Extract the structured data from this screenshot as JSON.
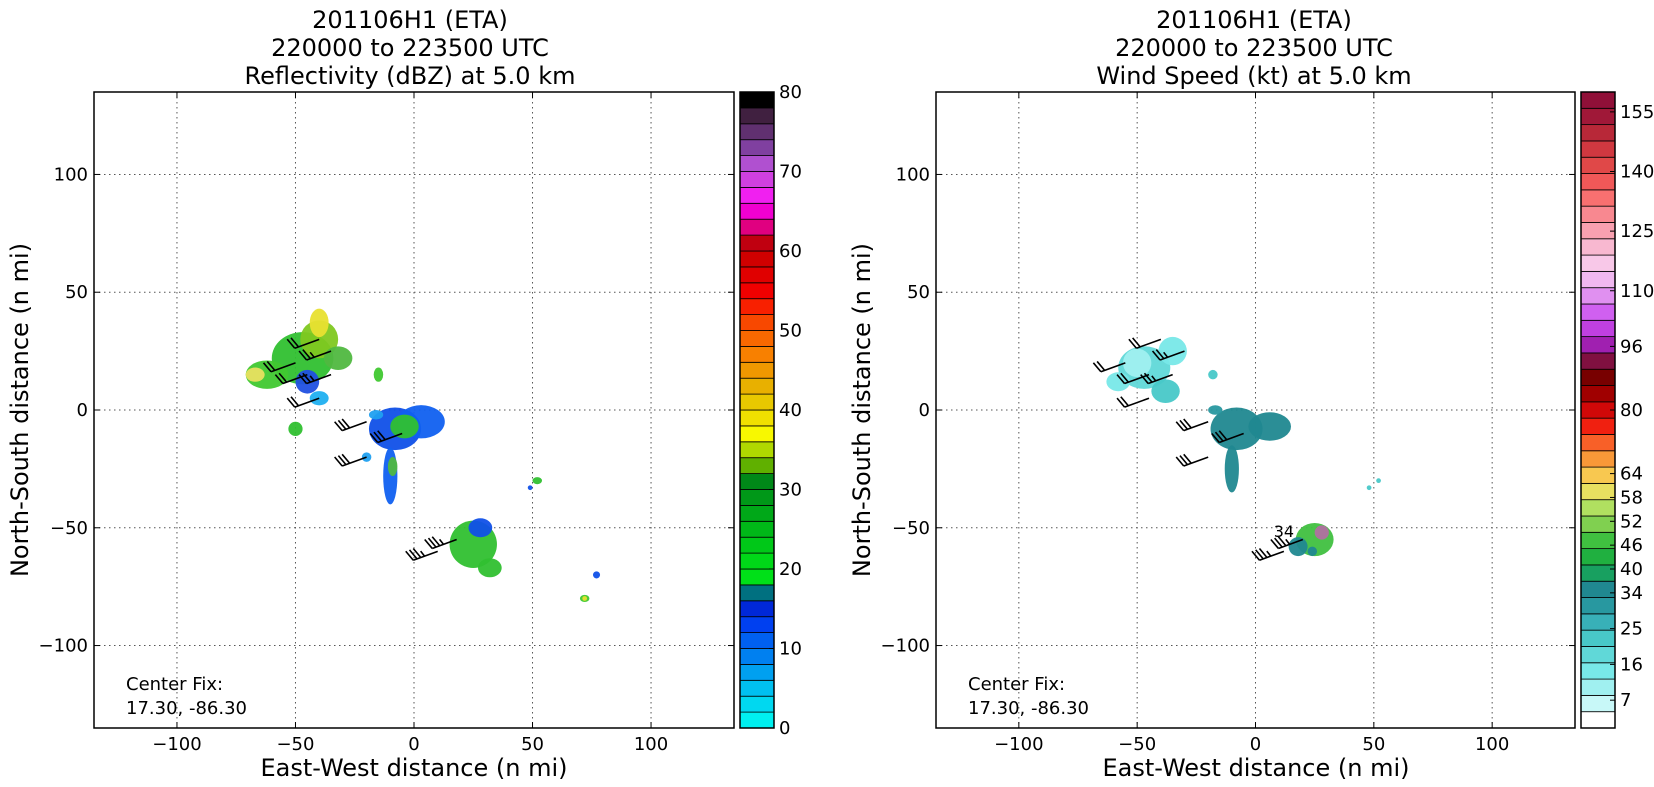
{
  "chart_data": [
    {
      "type": "heatmap",
      "title_lines": [
        "201106H1 (ETA)",
        "220000 to 223500 UTC",
        "Reflectivity (dBZ) at 5.0 km"
      ],
      "xlabel": "East-West distance (n mi)",
      "ylabel": "North-South distance (n mi)",
      "xlim": [
        -135,
        135
      ],
      "ylim": [
        -135,
        135
      ],
      "xticks": [
        -100,
        -50,
        0,
        50,
        100
      ],
      "yticks": [
        -100,
        -50,
        0,
        50,
        100
      ],
      "xtick_labels": [
        "−100",
        "−50",
        "0",
        "50",
        "100"
      ],
      "ytick_labels": [
        "−100",
        "−50",
        "0",
        "50",
        "100"
      ],
      "grid": true,
      "annotation_lines": [
        "Center Fix:",
        "17.30, -86.30"
      ],
      "colorbar": {
        "min": 0,
        "max": 80,
        "step": 2.5,
        "colors": [
          "#00f0f0",
          "#00d8f0",
          "#00c0f0",
          "#00a0f0",
          "#0080f0",
          "#0060f0",
          "#0040f0",
          "#0028d8",
          "#007080",
          "#00e018",
          "#00d818",
          "#00c818",
          "#00b818",
          "#00a818",
          "#009818",
          "#008818",
          "#60b000",
          "#b0d800",
          "#f8f800",
          "#f0e000",
          "#e8c800",
          "#e8b000",
          "#f09800",
          "#f88000",
          "#f86800",
          "#f84800",
          "#f82000",
          "#f00000",
          "#e00000",
          "#d00000",
          "#c00010",
          "#e00080",
          "#f000d0",
          "#f020f0",
          "#d040e0",
          "#b050d0",
          "#8040a0",
          "#603070",
          "#402040",
          "#000000"
        ],
        "tick_values": [
          0,
          10,
          20,
          30,
          40,
          50,
          60,
          70,
          80
        ],
        "tick_labels": [
          "0",
          "10",
          "20",
          "30",
          "40",
          "50",
          "60",
          "70",
          "80"
        ]
      },
      "echo_cells": [
        {
          "x": -47,
          "y": 22,
          "rx": 13,
          "ry": 11,
          "color": "#30c030"
        },
        {
          "x": -62,
          "y": 15,
          "rx": 9,
          "ry": 6,
          "color": "#40c830"
        },
        {
          "x": -40,
          "y": 30,
          "rx": 8,
          "ry": 8,
          "color": "#80c820"
        },
        {
          "x": -40,
          "y": 37,
          "rx": 4,
          "ry": 6,
          "color": "#e8e030"
        },
        {
          "x": -67,
          "y": 15,
          "rx": 4,
          "ry": 3,
          "color": "#e8e060"
        },
        {
          "x": -45,
          "y": 12,
          "rx": 5,
          "ry": 5,
          "color": "#2050e0"
        },
        {
          "x": -40,
          "y": 5,
          "rx": 4,
          "ry": 3,
          "color": "#20b0f0"
        },
        {
          "x": -32,
          "y": 22,
          "rx": 6,
          "ry": 5,
          "color": "#50b840"
        },
        {
          "x": -50,
          "y": -8,
          "rx": 3,
          "ry": 3,
          "color": "#30c030"
        },
        {
          "x": -15,
          "y": 15,
          "rx": 2,
          "ry": 3,
          "color": "#40c830"
        },
        {
          "x": -8,
          "y": -8,
          "rx": 11,
          "ry": 9,
          "color": "#1050e8"
        },
        {
          "x": 3,
          "y": -5,
          "rx": 10,
          "ry": 7,
          "color": "#1060f0"
        },
        {
          "x": -4,
          "y": -7,
          "rx": 6,
          "ry": 5,
          "color": "#30c030"
        },
        {
          "x": -10,
          "y": -28,
          "rx": 3,
          "ry": 12,
          "color": "#1060f0"
        },
        {
          "x": -9,
          "y": -24,
          "rx": 2,
          "ry": 4,
          "color": "#50b840"
        },
        {
          "x": -16,
          "y": -2,
          "rx": 3,
          "ry": 2,
          "color": "#20a0f0"
        },
        {
          "x": -20,
          "y": -20,
          "rx": 2,
          "ry": 2,
          "color": "#20a0f0"
        },
        {
          "x": 25,
          "y": -57,
          "rx": 10,
          "ry": 10,
          "color": "#30c030"
        },
        {
          "x": 32,
          "y": -67,
          "rx": 5,
          "ry": 4,
          "color": "#30c030"
        },
        {
          "x": 28,
          "y": -50,
          "rx": 5,
          "ry": 4,
          "color": "#1050e8"
        },
        {
          "x": 52,
          "y": -30,
          "rx": 2,
          "ry": 1.5,
          "color": "#30c030"
        },
        {
          "x": 49,
          "y": -33,
          "rx": 1,
          "ry": 1,
          "color": "#1050e8"
        },
        {
          "x": 77,
          "y": -70,
          "rx": 1.5,
          "ry": 1.5,
          "color": "#1050e8"
        },
        {
          "x": 72,
          "y": -80,
          "rx": 2,
          "ry": 1.5,
          "color": "#40c830"
        },
        {
          "x": 72,
          "y": -80,
          "rx": 1,
          "ry": 1,
          "color": "#e8e030"
        }
      ],
      "wind_barbs": [
        {
          "x": -50,
          "y": 20,
          "dir": 250,
          "speed": 20
        },
        {
          "x": -40,
          "y": 30,
          "dir": 250,
          "speed": 20
        },
        {
          "x": -35,
          "y": 25,
          "dir": 250,
          "speed": 25
        },
        {
          "x": -45,
          "y": 15,
          "dir": 250,
          "speed": 20
        },
        {
          "x": -35,
          "y": 15,
          "dir": 250,
          "speed": 25
        },
        {
          "x": -40,
          "y": 5,
          "dir": 250,
          "speed": 20
        },
        {
          "x": -20,
          "y": -5,
          "dir": 250,
          "speed": 30
        },
        {
          "x": -20,
          "y": -20,
          "dir": 250,
          "speed": 30
        },
        {
          "x": -5,
          "y": -10,
          "dir": 250,
          "speed": 30
        },
        {
          "x": 10,
          "y": -60,
          "dir": 250,
          "speed": 35
        },
        {
          "x": 18,
          "y": -55,
          "dir": 250,
          "speed": 35
        }
      ]
    },
    {
      "type": "heatmap",
      "title_lines": [
        "201106H1 (ETA)",
        "220000 to 223500 UTC",
        "Wind Speed (kt) at 5.0 km"
      ],
      "xlabel": "East-West distance (n mi)",
      "ylabel": "North-South distance (n mi)",
      "xlim": [
        -135,
        135
      ],
      "ylim": [
        -135,
        135
      ],
      "xticks": [
        -100,
        -50,
        0,
        50,
        100
      ],
      "yticks": [
        -100,
        -50,
        0,
        50,
        100
      ],
      "xtick_labels": [
        "−100",
        "−50",
        "0",
        "50",
        "100"
      ],
      "ytick_labels": [
        "−100",
        "−50",
        "0",
        "50",
        "100"
      ],
      "grid": true,
      "annotation_lines": [
        "Center Fix:",
        "17.30, -86.30"
      ],
      "contour_labels": [
        {
          "x": 12,
          "y": -54,
          "text": "34"
        }
      ],
      "colorbar": {
        "min": 0,
        "max": 160,
        "step": 5,
        "colors": [
          "#ffffff",
          "#c8f8f8",
          "#a0f0f0",
          "#78e8e8",
          "#60d8d8",
          "#48c8c8",
          "#38b0b8",
          "#2898a0",
          "#208890",
          "#18a060",
          "#20b040",
          "#40c040",
          "#80d050",
          "#b0e060",
          "#e8e060",
          "#f8c850",
          "#f89838",
          "#f86028",
          "#f02010",
          "#d00808",
          "#a00000",
          "#780000",
          "#801040",
          "#a020b0",
          "#c040e0",
          "#d060f0",
          "#e090f0",
          "#f0b8f0",
          "#f8c8e8",
          "#f8b8d0",
          "#f8a0b0",
          "#f88890",
          "#f87070",
          "#f05858",
          "#e04848",
          "#d03840",
          "#b82838",
          "#a01838",
          "#901038"
        ],
        "tick_values": [
          7,
          16,
          25,
          34,
          40,
          46,
          52,
          58,
          64,
          80,
          96,
          110,
          125,
          140,
          155
        ],
        "tick_labels": [
          "7",
          "16",
          "25",
          "34",
          "40",
          "46",
          "52",
          "58",
          "64",
          "80",
          "96",
          "110",
          "125",
          "140",
          "155"
        ]
      },
      "echo_cells": [
        {
          "x": -47,
          "y": 18,
          "rx": 11,
          "ry": 9,
          "color": "#60d8d8"
        },
        {
          "x": -50,
          "y": 20,
          "rx": 6,
          "ry": 6,
          "color": "#a0f0f0"
        },
        {
          "x": -35,
          "y": 25,
          "rx": 6,
          "ry": 6,
          "color": "#78e8e8"
        },
        {
          "x": -58,
          "y": 12,
          "rx": 5,
          "ry": 4,
          "color": "#78e8e8"
        },
        {
          "x": -38,
          "y": 8,
          "rx": 6,
          "ry": 5,
          "color": "#48c8c8"
        },
        {
          "x": -18,
          "y": 15,
          "rx": 2,
          "ry": 2,
          "color": "#48c8c8"
        },
        {
          "x": -8,
          "y": -8,
          "rx": 11,
          "ry": 9,
          "color": "#208890"
        },
        {
          "x": 6,
          "y": -7,
          "rx": 9,
          "ry": 6,
          "color": "#208890"
        },
        {
          "x": -10,
          "y": -25,
          "rx": 3,
          "ry": 10,
          "color": "#208890"
        },
        {
          "x": -17,
          "y": 0,
          "rx": 3,
          "ry": 2,
          "color": "#2898a0"
        },
        {
          "x": 25,
          "y": -55,
          "rx": 8,
          "ry": 7,
          "color": "#40c040"
        },
        {
          "x": 28,
          "y": -52,
          "rx": 3,
          "ry": 3,
          "color": "#b070a0"
        },
        {
          "x": 18,
          "y": -58,
          "rx": 4,
          "ry": 4,
          "color": "#208890"
        },
        {
          "x": 24,
          "y": -60,
          "rx": 2,
          "ry": 2,
          "color": "#208890"
        },
        {
          "x": 52,
          "y": -30,
          "rx": 1,
          "ry": 1,
          "color": "#48c8c8"
        },
        {
          "x": 48,
          "y": -33,
          "rx": 1,
          "ry": 1,
          "color": "#48c8c8"
        }
      ],
      "wind_barbs": [
        {
          "x": -55,
          "y": 20,
          "dir": 250,
          "speed": 20
        },
        {
          "x": -40,
          "y": 30,
          "dir": 250,
          "speed": 20
        },
        {
          "x": -30,
          "y": 25,
          "dir": 250,
          "speed": 25
        },
        {
          "x": -45,
          "y": 15,
          "dir": 250,
          "speed": 20
        },
        {
          "x": -35,
          "y": 15,
          "dir": 250,
          "speed": 25
        },
        {
          "x": -45,
          "y": 5,
          "dir": 250,
          "speed": 20
        },
        {
          "x": -20,
          "y": -5,
          "dir": 250,
          "speed": 30
        },
        {
          "x": -20,
          "y": -20,
          "dir": 250,
          "speed": 30
        },
        {
          "x": -5,
          "y": -10,
          "dir": 250,
          "speed": 30
        },
        {
          "x": 12,
          "y": -60,
          "dir": 250,
          "speed": 35
        },
        {
          "x": 20,
          "y": -55,
          "dir": 250,
          "speed": 35
        }
      ]
    }
  ]
}
